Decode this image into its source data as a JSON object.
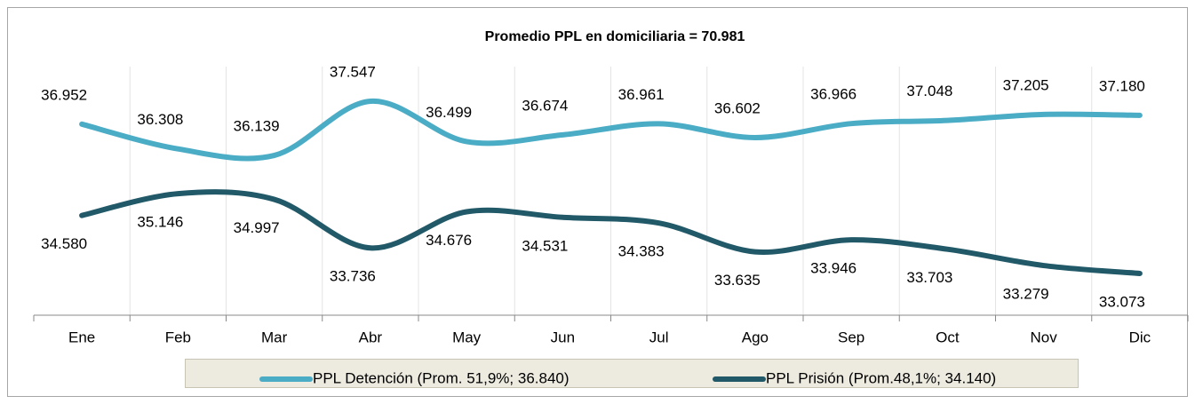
{
  "chart_data": {
    "type": "line",
    "title": "Promedio PPL en domiciliaria = 70.981",
    "categories": [
      "Ene",
      "Feb",
      "Mar",
      "Abr",
      "May",
      "Jun",
      "Jul",
      "Ago",
      "Sep",
      "Oct",
      "Nov",
      "Dic"
    ],
    "series": [
      {
        "name": "PPL Detención (Prom. 51,9%; 36.840)",
        "color": "#4bacc6",
        "values": [
          36952,
          36308,
          36139,
          37547,
          36499,
          36674,
          36961,
          36602,
          36966,
          37048,
          37205,
          37180
        ],
        "value_labels": [
          "36.952",
          "36.308",
          "36.139",
          "37.547",
          "36.499",
          "36.674",
          "36.961",
          "36.602",
          "36.966",
          "37.048",
          "37.205",
          "37.180"
        ]
      },
      {
        "name": "PPL Prisión (Prom.48,1%; 34.140)",
        "color": "#215968",
        "values": [
          34580,
          35146,
          34997,
          33736,
          34676,
          34531,
          34383,
          33635,
          33946,
          33703,
          33279,
          33073
        ],
        "value_labels": [
          "34.580",
          "35.146",
          "34.997",
          "33.736",
          "34.676",
          "34.531",
          "34.383",
          "33.635",
          "33.946",
          "33.703",
          "33.279",
          "33.073"
        ]
      }
    ],
    "legend": "bottom"
  }
}
